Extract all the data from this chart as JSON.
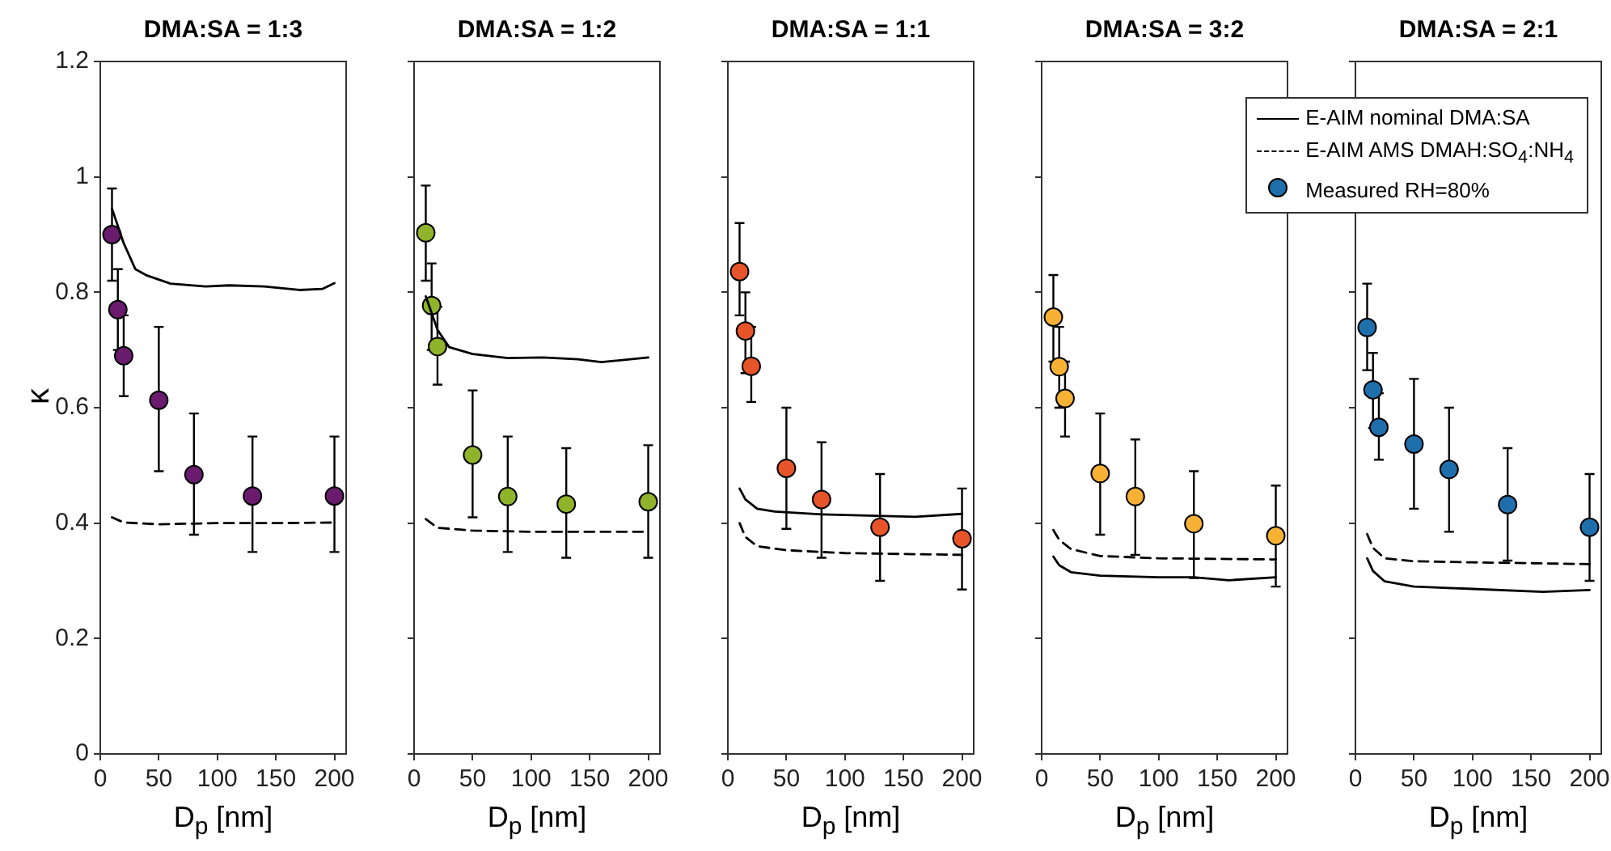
{
  "chart_data": [
    {
      "type": "scatter",
      "title": "DMA:SA = 1:3",
      "xlabel": "D$_{p}$ [nm]",
      "ylabel": "κ",
      "xlim": [
        0,
        210
      ],
      "xticks": [
        0,
        50,
        100,
        150,
        200
      ],
      "ylim": [
        0,
        1.2
      ],
      "yticks": [
        0,
        0.2,
        0.4,
        0.6,
        0.8,
        1,
        1.2
      ],
      "series": [
        {
          "type": "line",
          "color": "#000000",
          "line_style": "solid",
          "marker": "none",
          "x": [
            10,
            20,
            30,
            40,
            60,
            90,
            110,
            140,
            170,
            190,
            200
          ],
          "values": [
            0.945,
            0.885,
            0.84,
            0.829,
            0.815,
            0.81,
            0.812,
            0.81,
            0.804,
            0.806,
            0.816
          ]
        },
        {
          "type": "line",
          "color": "#000000",
          "line_style": "dashed",
          "marker": "none",
          "x": [
            10,
            20,
            50,
            100,
            150,
            200
          ],
          "values": [
            0.41,
            0.401,
            0.398,
            0.4,
            0.4,
            0.401
          ]
        },
        {
          "type": "scatter",
          "color": "#6a1b6e",
          "x": [
            10,
            15,
            20,
            50,
            80,
            130,
            200
          ],
          "values": [
            0.9,
            0.77,
            0.69,
            0.613,
            0.484,
            0.447,
            0.447
          ],
          "errors": [
            [
              0.82,
              0.98
            ],
            [
              0.7,
              0.84
            ],
            [
              0.62,
              0.76
            ],
            [
              0.49,
              0.74
            ],
            [
              0.38,
              0.59
            ],
            [
              0.35,
              0.55
            ],
            [
              0.35,
              0.55
            ]
          ]
        }
      ]
    },
    {
      "type": "scatter",
      "title": "DMA:SA = 1:2",
      "xlabel": "D$_{p}$ [nm]",
      "xlim": [
        0,
        210
      ],
      "xticks": [
        0,
        50,
        100,
        150,
        200
      ],
      "ylim": [
        0,
        1.2
      ],
      "yticks": [
        0,
        0.2,
        0.4,
        0.6,
        0.8,
        1,
        1.2
      ],
      "tick_labels": "x",
      "series": [
        {
          "type": "line",
          "color": "#000000",
          "line_style": "solid",
          "marker": "none",
          "x": [
            10,
            20,
            30,
            50,
            80,
            110,
            140,
            160,
            200
          ],
          "values": [
            0.793,
            0.735,
            0.705,
            0.693,
            0.686,
            0.687,
            0.684,
            0.679,
            0.687
          ]
        },
        {
          "type": "line",
          "color": "#000000",
          "line_style": "dashed",
          "marker": "none",
          "x": [
            10,
            20,
            50,
            100,
            200
          ],
          "values": [
            0.407,
            0.392,
            0.387,
            0.385,
            0.385
          ]
        },
        {
          "type": "scatter",
          "color": "#8fb32a",
          "x": [
            10,
            15,
            20,
            50,
            80,
            130,
            200
          ],
          "values": [
            0.903,
            0.777,
            0.706,
            0.518,
            0.446,
            0.433,
            0.437
          ],
          "errors": [
            [
              0.82,
              0.985
            ],
            [
              0.7,
              0.85
            ],
            [
              0.64,
              0.775
            ],
            [
              0.41,
              0.63
            ],
            [
              0.35,
              0.55
            ],
            [
              0.34,
              0.53
            ],
            [
              0.34,
              0.535
            ]
          ]
        }
      ]
    },
    {
      "type": "scatter",
      "title": "DMA:SA = 1:1",
      "xlabel": "D$_{p}$ [nm]",
      "xlim": [
        0,
        210
      ],
      "xticks": [
        0,
        50,
        100,
        150,
        200
      ],
      "ylim": [
        0,
        1.2
      ],
      "yticks": [
        0,
        0.2,
        0.4,
        0.6,
        0.8,
        1,
        1.2
      ],
      "tick_labels": "x",
      "series": [
        {
          "type": "line",
          "color": "#000000",
          "line_style": "solid",
          "marker": "none",
          "x": [
            10,
            15,
            25,
            40,
            80,
            120,
            160,
            200
          ],
          "values": [
            0.46,
            0.441,
            0.425,
            0.42,
            0.415,
            0.413,
            0.411,
            0.416
          ]
        },
        {
          "type": "line",
          "color": "#000000",
          "line_style": "dashed",
          "marker": "none",
          "x": [
            10,
            15,
            25,
            50,
            100,
            200
          ],
          "values": [
            0.4,
            0.376,
            0.36,
            0.353,
            0.348,
            0.345
          ]
        },
        {
          "type": "scatter",
          "color": "#e8542a",
          "x": [
            10,
            15,
            20,
            50,
            80,
            130,
            200
          ],
          "values": [
            0.836,
            0.733,
            0.672,
            0.495,
            0.441,
            0.393,
            0.373
          ],
          "errors": [
            [
              0.76,
              0.92
            ],
            [
              0.66,
              0.8
            ],
            [
              0.61,
              0.74
            ],
            [
              0.39,
              0.6
            ],
            [
              0.34,
              0.54
            ],
            [
              0.3,
              0.485
            ],
            [
              0.285,
              0.46
            ]
          ]
        }
      ]
    },
    {
      "type": "scatter",
      "title": "DMA:SA = 3:2",
      "xlabel": "D$_{p}$ [nm]",
      "xlim": [
        0,
        210
      ],
      "xticks": [
        0,
        50,
        100,
        150,
        200
      ],
      "ylim": [
        0,
        1.2
      ],
      "yticks": [
        0,
        0.2,
        0.4,
        0.6,
        0.8,
        1,
        1.2
      ],
      "tick_labels": "x",
      "series": [
        {
          "type": "line",
          "color": "#000000",
          "line_style": "solid",
          "marker": "none",
          "x": [
            10,
            15,
            25,
            50,
            100,
            130,
            160,
            200
          ],
          "values": [
            0.342,
            0.327,
            0.315,
            0.309,
            0.306,
            0.306,
            0.301,
            0.306
          ]
        },
        {
          "type": "line",
          "color": "#000000",
          "line_style": "dashed",
          "marker": "none",
          "x": [
            10,
            15,
            25,
            50,
            100,
            200
          ],
          "values": [
            0.388,
            0.371,
            0.355,
            0.343,
            0.339,
            0.337
          ]
        },
        {
          "type": "scatter",
          "color": "#f7b236",
          "x": [
            10,
            15,
            20,
            50,
            80,
            130,
            200
          ],
          "values": [
            0.757,
            0.671,
            0.616,
            0.486,
            0.446,
            0.399,
            0.378
          ],
          "errors": [
            [
              0.68,
              0.83
            ],
            [
              0.6,
              0.74
            ],
            [
              0.55,
              0.68
            ],
            [
              0.38,
              0.59
            ],
            [
              0.345,
              0.545
            ],
            [
              0.305,
              0.49
            ],
            [
              0.29,
              0.465
            ]
          ]
        }
      ]
    },
    {
      "type": "scatter",
      "title": "DMA:SA = 2:1",
      "xlabel": "D$_{p}$ [nm]",
      "xlim": [
        0,
        210
      ],
      "xticks": [
        0,
        50,
        100,
        150,
        200
      ],
      "ylim": [
        0,
        1.2
      ],
      "yticks": [
        0,
        0.2,
        0.4,
        0.6,
        0.8,
        1,
        1.2
      ],
      "tick_labels": "x",
      "legend": "top",
      "series": [
        {
          "name": "E-AIM nominal DMA:SA",
          "type": "line",
          "color": "#000000",
          "line_style": "solid",
          "marker": "none",
          "x": [
            10,
            15,
            25,
            50,
            100,
            160,
            200
          ],
          "values": [
            0.339,
            0.317,
            0.299,
            0.29,
            0.286,
            0.281,
            0.284
          ]
        },
        {
          "name": "E-AIM AMS DMAH:SO$_{4}$:NH$_{4}$",
          "type": "line",
          "color": "#000000",
          "line_style": "dashed",
          "marker": "none",
          "x": [
            10,
            15,
            25,
            50,
            100,
            200
          ],
          "values": [
            0.381,
            0.357,
            0.339,
            0.334,
            0.332,
            0.329
          ]
        },
        {
          "name": "Measured RH=80%",
          "type": "scatter",
          "color": "#1f6fad",
          "x": [
            10,
            15,
            20,
            50,
            80,
            130,
            200
          ],
          "values": [
            0.739,
            0.631,
            0.566,
            0.537,
            0.493,
            0.432,
            0.393
          ],
          "errors": [
            [
              0.665,
              0.815
            ],
            [
              0.565,
              0.695
            ],
            [
              0.51,
              0.625
            ],
            [
              0.425,
              0.65
            ],
            [
              0.385,
              0.6
            ],
            [
              0.335,
              0.53
            ],
            [
              0.3,
              0.485
            ]
          ]
        }
      ]
    }
  ]
}
